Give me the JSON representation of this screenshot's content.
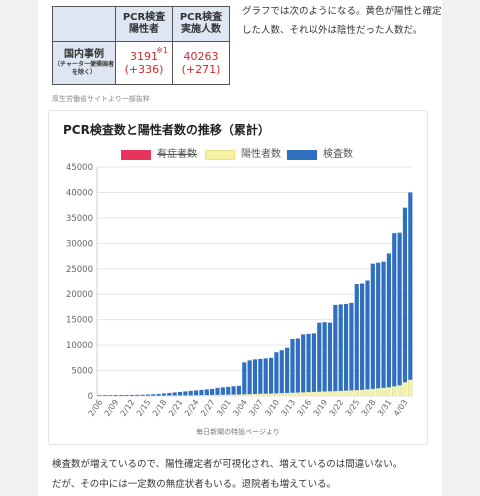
{
  "table": {
    "header_left": "",
    "header_pcr_positive": [
      "PCR検査",
      "陽性者"
    ],
    "header_pcr_tested": [
      "PCR検査",
      "実施人数"
    ],
    "row_label": "国内事例",
    "row_sublabel": "（チャーター便帰国者を除く）",
    "note_mark": "※1",
    "positive_value": "3191",
    "positive_delta": "(+336)",
    "tested_value": "40263",
    "tested_delta": "(+271)"
  },
  "table_source": "厚生労働省サイトより一部抜粋",
  "side_text": "グラフでは次のようになる。黄色が陽性と確定した人数、それ以外は陰性だった人数だ。",
  "chart_title": "PCR検査数と陽性者数の推移（累計）",
  "legend": [
    {
      "label": "有症者数",
      "color": "#e8335d",
      "hidden": true
    },
    {
      "label": "陽性者数",
      "color": "#f7f2a0",
      "hidden": false
    },
    {
      "label": "検査数",
      "color": "#2f6fbf",
      "hidden": false
    }
  ],
  "chart_source": "毎日新聞の特設ページより",
  "bottom_text": [
    "検査数が増えているので、陽性確定者が可視化され、増えているのは間違いない。",
    "だが、その中には一定数の無症状者もいる。退院者も増えている。"
  ],
  "chart_data": {
    "type": "bar",
    "stacked": true,
    "title": "PCR検査数と陽性者数の推移（累計）",
    "ylim": [
      0,
      45000
    ],
    "yticks": [
      0,
      5000,
      10000,
      15000,
      20000,
      25000,
      30000,
      35000,
      40000,
      45000
    ],
    "x_tick_labels": [
      "2/06",
      "2/09",
      "2/12",
      "2/15",
      "2/18",
      "2/21",
      "2/24",
      "2/27",
      "3/01",
      "3/04",
      "3/07",
      "3/10",
      "3/13",
      "3/16",
      "3/19",
      "3/22",
      "3/25",
      "3/28",
      "3/31",
      "4/03"
    ],
    "categories": [
      "2/06",
      "2/07",
      "2/08",
      "2/09",
      "2/10",
      "2/11",
      "2/12",
      "2/13",
      "2/14",
      "2/15",
      "2/16",
      "2/17",
      "2/18",
      "2/19",
      "2/20",
      "2/21",
      "2/22",
      "2/23",
      "2/24",
      "2/25",
      "2/26",
      "2/27",
      "2/28",
      "2/29",
      "3/01",
      "3/02",
      "3/03",
      "3/04",
      "3/05",
      "3/06",
      "3/07",
      "3/08",
      "3/09",
      "3/10",
      "3/11",
      "3/12",
      "3/13",
      "3/14",
      "3/15",
      "3/16",
      "3/17",
      "3/18",
      "3/19",
      "3/20",
      "3/21",
      "3/22",
      "3/23",
      "3/24",
      "3/25",
      "3/26",
      "3/27",
      "3/28",
      "3/29",
      "3/30",
      "3/31",
      "4/01",
      "4/02",
      "4/03",
      "4/04"
    ],
    "series": [
      {
        "name": "検査数",
        "color": "#2f6fbf",
        "values": [
          150,
          160,
          170,
          180,
          190,
          200,
          210,
          230,
          250,
          300,
          350,
          400,
          500,
          600,
          700,
          800,
          900,
          1000,
          1100,
          1200,
          1300,
          1400,
          1600,
          1700,
          1800,
          1900,
          2000,
          6600,
          7000,
          7200,
          7300,
          7400,
          7500,
          8600,
          9000,
          9500,
          11200,
          11300,
          12100,
          12200,
          12300,
          14400,
          14500,
          14400,
          17900,
          18000,
          18100,
          18300,
          22000,
          22100,
          22700,
          26000,
          26200,
          26400,
          28000,
          32000,
          32100,
          37000,
          40000
        ]
      },
      {
        "name": "陽性者数",
        "color": "#f7f2a0",
        "values": [
          20,
          22,
          25,
          26,
          27,
          28,
          30,
          35,
          40,
          50,
          55,
          60,
          70,
          80,
          90,
          100,
          110,
          120,
          140,
          160,
          180,
          200,
          220,
          240,
          260,
          280,
          300,
          330,
          360,
          400,
          430,
          460,
          480,
          520,
          560,
          600,
          640,
          680,
          720,
          760,
          800,
          840,
          880,
          920,
          960,
          1000,
          1050,
          1100,
          1150,
          1200,
          1300,
          1400,
          1500,
          1600,
          1700,
          1900,
          2100,
          2700,
          3200
        ]
      }
    ]
  }
}
